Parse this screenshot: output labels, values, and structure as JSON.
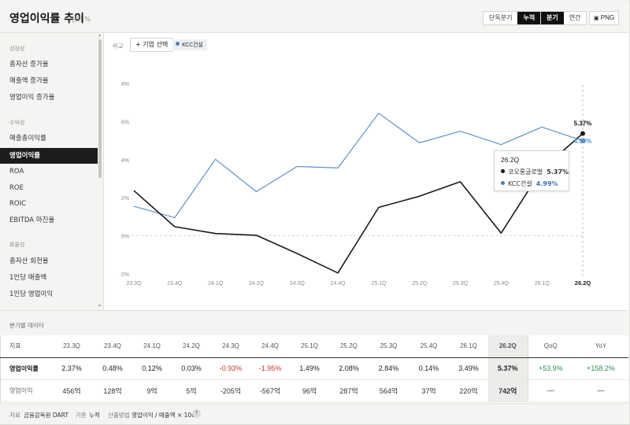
{
  "header": {
    "title": "영업이익률 추이",
    "unit": "단위 %",
    "mode_toggle": [
      "단독분기",
      "누적"
    ],
    "mode_selected": "누적",
    "period_toggle": [
      "분기",
      "연간"
    ],
    "period_selected": "분기",
    "png_label": "PNG"
  },
  "sidebar": {
    "sections": [
      {
        "title": "성장성",
        "items": [
          "총자산 증가율",
          "매출액 증가율",
          "영업이익 증가율"
        ]
      },
      {
        "title": "수익성",
        "items": [
          "매출총이익률",
          "영업이익률",
          "ROA",
          "ROE",
          "ROIC",
          "EBITDA 마진율"
        ]
      },
      {
        "title": "효율성",
        "items": [
          "총자산 회전율",
          "1인당 매출액",
          "1인당 영업이익"
        ]
      }
    ],
    "active": "영업이익률"
  },
  "toolbar": {
    "compare_label": "비교",
    "add_company_label": "+ 기업 선택",
    "chip_label": "KCC건설"
  },
  "colors": {
    "primary_series": "#1a1a1a",
    "compare_series": "#5b93c7",
    "negative": "#c0392b",
    "positive": "#2e8b57"
  },
  "chart_data": {
    "type": "line",
    "x": [
      "23.3Q",
      "23.4Q",
      "24.1Q",
      "24.2Q",
      "24.3Q",
      "24.4Q",
      "25.1Q",
      "25.2Q",
      "25.3Q",
      "25.4Q",
      "26.1Q",
      "26.2Q"
    ],
    "series": [
      {
        "name": "코오롱글로벌",
        "values": [
          2.37,
          0.48,
          0.12,
          0.03,
          -0.93,
          -1.95,
          1.49,
          2.08,
          2.84,
          0.14,
          3.49,
          5.37
        ]
      },
      {
        "name": "KCC건설",
        "values": [
          1.55,
          0.95,
          4.02,
          2.32,
          3.64,
          3.56,
          6.44,
          4.88,
          5.49,
          4.79,
          5.71,
          4.99
        ]
      }
    ],
    "yticks": [
      "8%",
      "6%",
      "4%",
      "2%",
      "0%",
      "-2%"
    ],
    "ylim": [
      -2,
      8
    ],
    "grid": false,
    "end_label": "5.37%",
    "end_label_compare": "4.99%",
    "highlight_index": 11
  },
  "tooltip": {
    "quarter": "26.2Q",
    "rows": [
      {
        "name": "코오롱글로벌",
        "value": "5.37%"
      },
      {
        "name": "KCC건설",
        "value": "4.99%"
      }
    ]
  },
  "table": {
    "section_title": "분기별 데이터",
    "header": [
      "지표",
      "23.3Q",
      "23.4Q",
      "24.1Q",
      "24.2Q",
      "24.3Q",
      "24.4Q",
      "25.1Q",
      "25.2Q",
      "25.3Q",
      "25.4Q",
      "26.1Q",
      "26.2Q",
      "QoQ",
      "YoY"
    ],
    "rows": [
      {
        "label": "영업이익률",
        "cells": [
          "2.37%",
          "0.48%",
          "0.12%",
          "0.03%",
          "-0.93%",
          "-1.95%",
          "1.49%",
          "2.08%",
          "2.84%",
          "0.14%",
          "3.49%",
          "5.37%",
          "+53.9%",
          "+158.2%"
        ]
      },
      {
        "label": "영업이익",
        "cells": [
          "456억",
          "128억",
          "9억",
          "5억",
          "-205억",
          "-567억",
          "96억",
          "287억",
          "564억",
          "37억",
          "220억",
          "742억",
          "—",
          "—"
        ]
      }
    ]
  },
  "footer": {
    "source_label": "자료",
    "source_value": "금융감독원 DART",
    "basis_label": "기준",
    "basis_value": "누적",
    "method_label": "산출방법",
    "method_value": "영업이익 / 매출액 × 100",
    "help_icon": "?"
  }
}
